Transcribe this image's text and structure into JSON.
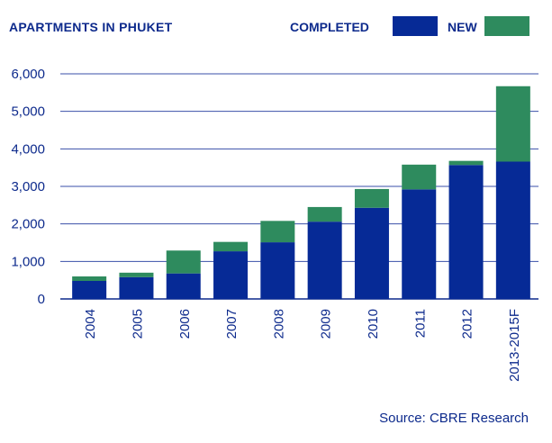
{
  "chart_data": {
    "type": "bar",
    "stacked": true,
    "title": "APARTMENTS IN PHUKET",
    "categories": [
      "2004",
      "2005",
      "2006",
      "2007",
      "2008",
      "2009",
      "2010",
      "2011",
      "2012",
      "2013-2015F"
    ],
    "series": [
      {
        "name": "COMPLETED",
        "color": "#062a96",
        "values": [
          480,
          580,
          680,
          1270,
          1510,
          2060,
          2430,
          2920,
          3570,
          3660
        ]
      },
      {
        "name": "NEW",
        "color": "#2e8b5e",
        "values": [
          120,
          120,
          610,
          250,
          570,
          390,
          500,
          660,
          110,
          2010
        ]
      }
    ],
    "ylim": [
      0,
      6000
    ],
    "yticks": [
      "0",
      "1,000",
      "2,000",
      "3,000",
      "4,000",
      "5,000",
      "6,000"
    ],
    "ytick_values": [
      0,
      1000,
      2000,
      3000,
      4000,
      5000,
      6000
    ],
    "grid": true,
    "legend_position": "top-right",
    "source": "Source:  CBRE Research"
  }
}
